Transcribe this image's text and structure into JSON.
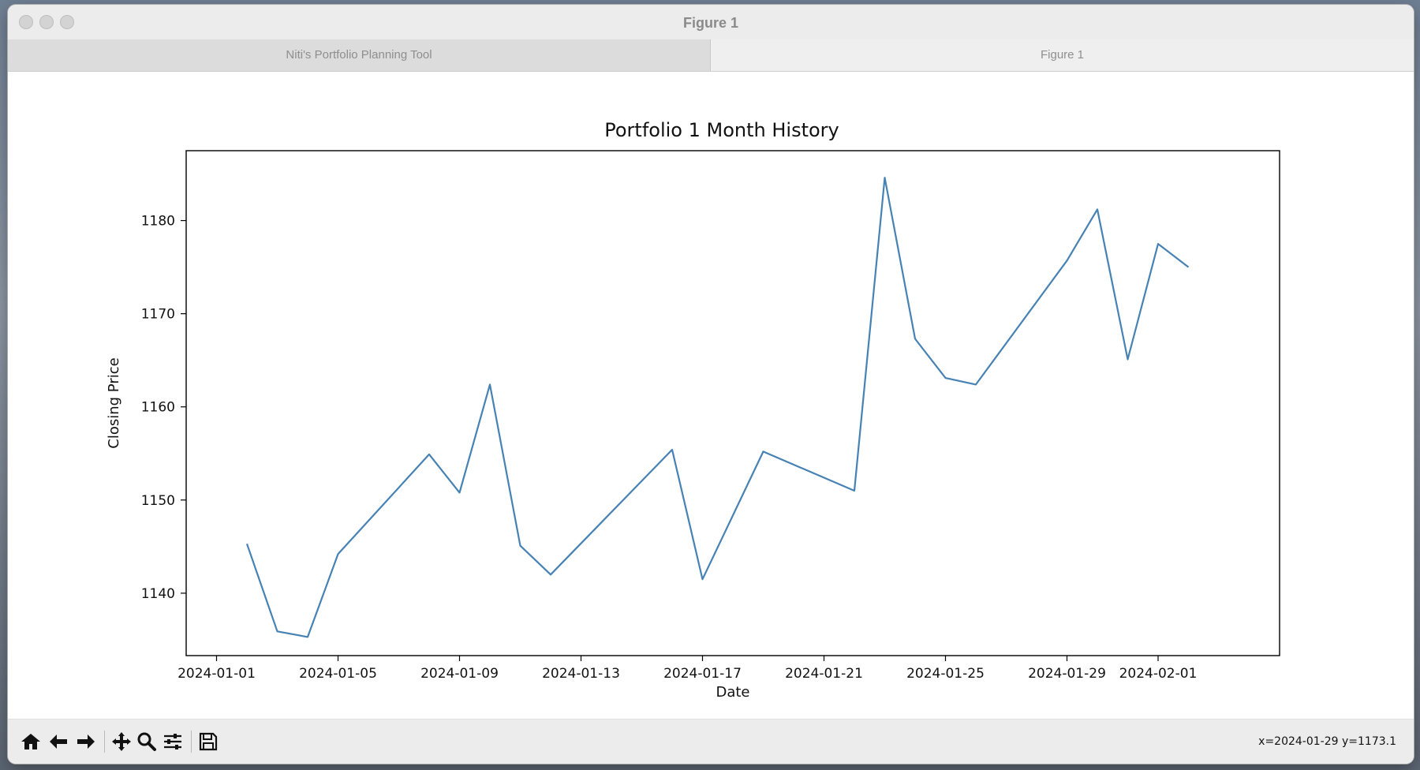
{
  "window": {
    "title": "Figure 1"
  },
  "tabs": [
    {
      "label": "Niti's Portfolio Planning Tool"
    },
    {
      "label": "Figure 1"
    }
  ],
  "toolbar": {
    "icons": [
      "home-icon",
      "back-arrow-icon",
      "forward-arrow-icon",
      "pan-icon",
      "zoom-icon",
      "configure-subplots-icon",
      "save-icon"
    ],
    "coords": "x=2024-01-29 y=1173.1"
  },
  "chart_data": {
    "type": "line",
    "title": "Portfolio 1 Month History",
    "xlabel": "Date",
    "ylabel": "Closing Price",
    "x_ticks": [
      "2024-01-01",
      "2024-01-05",
      "2024-01-09",
      "2024-01-13",
      "2024-01-17",
      "2024-01-21",
      "2024-01-25",
      "2024-01-29",
      "2024-02-01"
    ],
    "y_ticks": [
      1140,
      1150,
      1160,
      1170,
      1180
    ],
    "xlim": [
      "2023-12-31",
      "2024-02-05"
    ],
    "ylim": [
      1133.3,
      1187.5
    ],
    "grid": false,
    "line_color": "#4682b4",
    "series": [
      {
        "x": [
          "2024-01-02",
          "2024-01-03",
          "2024-01-04",
          "2024-01-05",
          "2024-01-08",
          "2024-01-09",
          "2024-01-10",
          "2024-01-11",
          "2024-01-12",
          "2024-01-16",
          "2024-01-17",
          "2024-01-19",
          "2024-01-22",
          "2024-01-23",
          "2024-01-24",
          "2024-01-25",
          "2024-01-26",
          "2024-01-29",
          "2024-01-30",
          "2024-01-31",
          "2024-02-01",
          "2024-02-02"
        ],
        "values": [
          1145.3,
          1135.9,
          1135.3,
          1144.2,
          1154.9,
          1150.8,
          1162.4,
          1145.1,
          1142.0,
          1155.4,
          1141.5,
          1155.2,
          1151.0,
          1184.6,
          1167.3,
          1163.1,
          1162.4,
          1175.7,
          1181.2,
          1165.1,
          1177.5,
          1175.0
        ]
      }
    ]
  }
}
